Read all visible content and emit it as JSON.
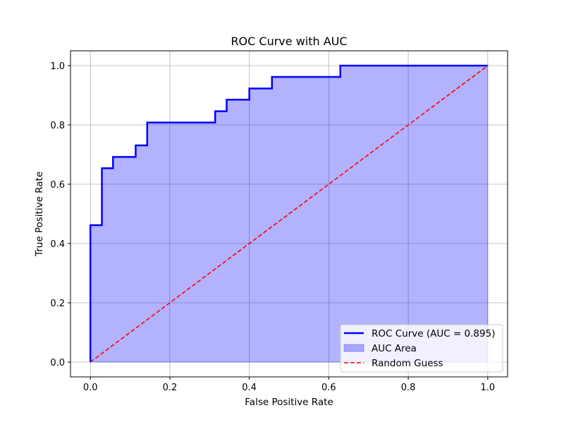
{
  "chart_data": {
    "type": "line",
    "title": "ROC Curve with AUC",
    "xlabel": "False Positive Rate",
    "ylabel": "True Positive Rate",
    "xlim": [
      -0.05,
      1.05
    ],
    "ylim": [
      -0.05,
      1.05
    ],
    "xticks": [
      0.0,
      0.2,
      0.4,
      0.6,
      0.8,
      1.0
    ],
    "yticks": [
      0.0,
      0.2,
      0.4,
      0.6,
      0.8,
      1.0
    ],
    "xtick_labels": [
      "0.0",
      "0.2",
      "0.4",
      "0.6",
      "0.8",
      "1.0"
    ],
    "ytick_labels": [
      "0.0",
      "0.2",
      "0.4",
      "0.6",
      "0.8",
      "1.0"
    ],
    "grid": true,
    "legend_position": "lower-right",
    "series": [
      {
        "name": "ROC Curve (AUC = 0.895)",
        "kind": "step-line",
        "color": "#0000ff",
        "points": [
          [
            0.0,
            0.0
          ],
          [
            0.0,
            0.462
          ],
          [
            0.029,
            0.462
          ],
          [
            0.029,
            0.654
          ],
          [
            0.057,
            0.654
          ],
          [
            0.057,
            0.692
          ],
          [
            0.114,
            0.692
          ],
          [
            0.114,
            0.731
          ],
          [
            0.143,
            0.731
          ],
          [
            0.143,
            0.808
          ],
          [
            0.314,
            0.808
          ],
          [
            0.314,
            0.846
          ],
          [
            0.343,
            0.846
          ],
          [
            0.343,
            0.885
          ],
          [
            0.4,
            0.885
          ],
          [
            0.4,
            0.923
          ],
          [
            0.457,
            0.923
          ],
          [
            0.457,
            0.962
          ],
          [
            0.629,
            0.962
          ],
          [
            0.629,
            1.0
          ],
          [
            1.0,
            1.0
          ]
        ]
      },
      {
        "name": "AUC Area",
        "kind": "area",
        "color": "#0000ff",
        "opacity": 0.3,
        "under_series": "ROC Curve (AUC = 0.895)"
      },
      {
        "name": "Random Guess",
        "kind": "dashed-line",
        "color": "#ff0000",
        "points": [
          [
            0.0,
            0.0
          ],
          [
            1.0,
            1.0
          ]
        ]
      }
    ],
    "auc": 0.895
  }
}
